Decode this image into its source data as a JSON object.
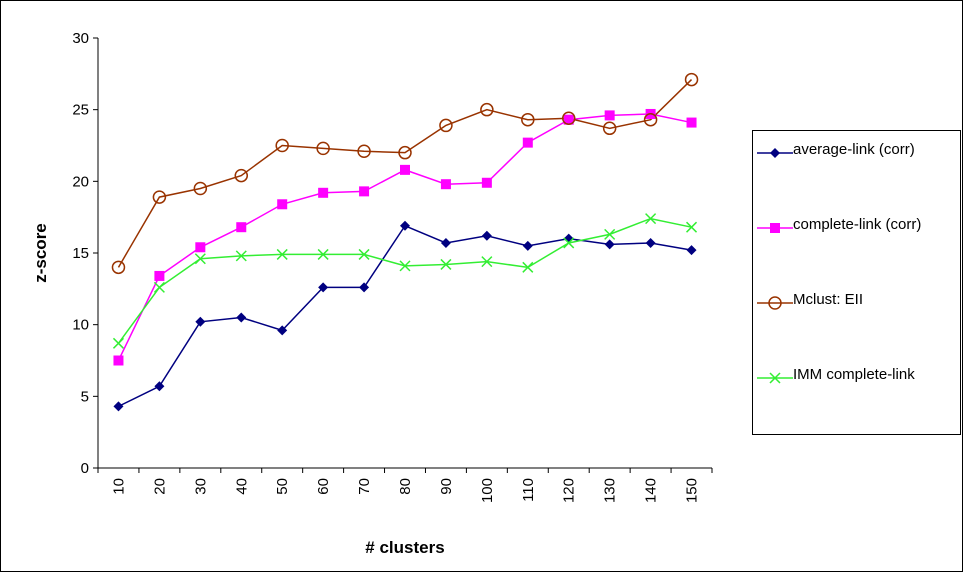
{
  "chart_data": {
    "type": "line",
    "x_label": "# clusters",
    "y_label": "z-score",
    "categories": [
      "10",
      "20",
      "30",
      "40",
      "50",
      "60",
      "70",
      "80",
      "90",
      "100",
      "110",
      "120",
      "130",
      "140",
      "150"
    ],
    "ylim": [
      0,
      30
    ],
    "yticks": [
      0,
      5,
      10,
      15,
      20,
      25,
      30
    ],
    "series": [
      {
        "name": "average-link (corr)",
        "color": "#000080",
        "marker": "diamond",
        "values": [
          4.3,
          5.7,
          10.2,
          10.5,
          9.6,
          12.6,
          12.6,
          16.9,
          15.7,
          16.2,
          15.5,
          16.0,
          15.6,
          15.7,
          15.2
        ]
      },
      {
        "name": "complete-link (corr)",
        "color": "#ff00ff",
        "marker": "square",
        "values": [
          7.5,
          13.4,
          15.4,
          16.8,
          18.4,
          19.2,
          19.3,
          20.8,
          19.8,
          19.9,
          22.7,
          24.3,
          24.6,
          24.7,
          24.1
        ]
      },
      {
        "name": "Mclust: EII",
        "color": "#993300",
        "marker": "circle",
        "values": [
          14.0,
          18.9,
          19.5,
          20.4,
          22.5,
          22.3,
          22.1,
          22.0,
          23.9,
          25.0,
          24.3,
          24.4,
          23.7,
          24.3,
          27.1
        ]
      },
      {
        "name": "IMM complete-link",
        "color": "#33ee33",
        "marker": "x",
        "values": [
          8.7,
          12.6,
          14.6,
          14.8,
          14.9,
          14.9,
          14.9,
          14.1,
          14.2,
          14.4,
          14.0,
          15.7,
          16.3,
          17.4,
          16.8
        ]
      }
    ]
  }
}
